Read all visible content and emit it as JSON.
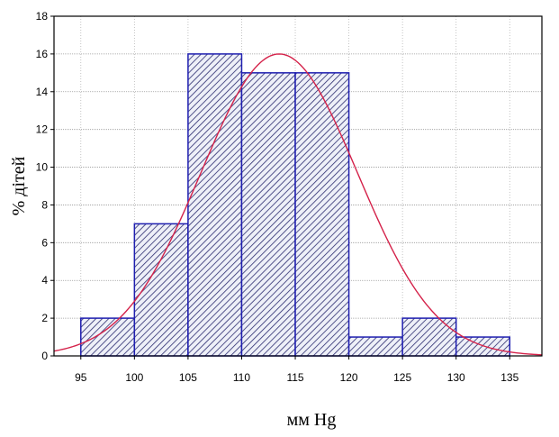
{
  "chart_data": {
    "type": "bar",
    "title": "",
    "xlabel": "мм Hg",
    "ylabel": "% дітей",
    "x_ticks": [
      95,
      100,
      105,
      110,
      115,
      120,
      125,
      130,
      135
    ],
    "y_ticks": [
      0,
      2,
      4,
      6,
      8,
      10,
      12,
      14,
      16,
      18
    ],
    "xlim": [
      92.5,
      138
    ],
    "ylim": [
      0,
      18
    ],
    "bins": [
      {
        "from": 95,
        "to": 100,
        "value": 2
      },
      {
        "from": 100,
        "to": 105,
        "value": 7
      },
      {
        "from": 105,
        "to": 110,
        "value": 16
      },
      {
        "from": 110,
        "to": 115,
        "value": 15
      },
      {
        "from": 115,
        "to": 120,
        "value": 15
      },
      {
        "from": 120,
        "to": 125,
        "value": 1
      },
      {
        "from": 125,
        "to": 130,
        "value": 2
      },
      {
        "from": 130,
        "to": 135,
        "value": 1
      }
    ],
    "fitted_curve": {
      "type": "normal",
      "mean": 113.5,
      "peak": 16
    },
    "grid": true,
    "colors": {
      "bar_stroke": "#1f1fb0",
      "hatch": "#2a2a6e",
      "curve": "#d4224a"
    }
  }
}
